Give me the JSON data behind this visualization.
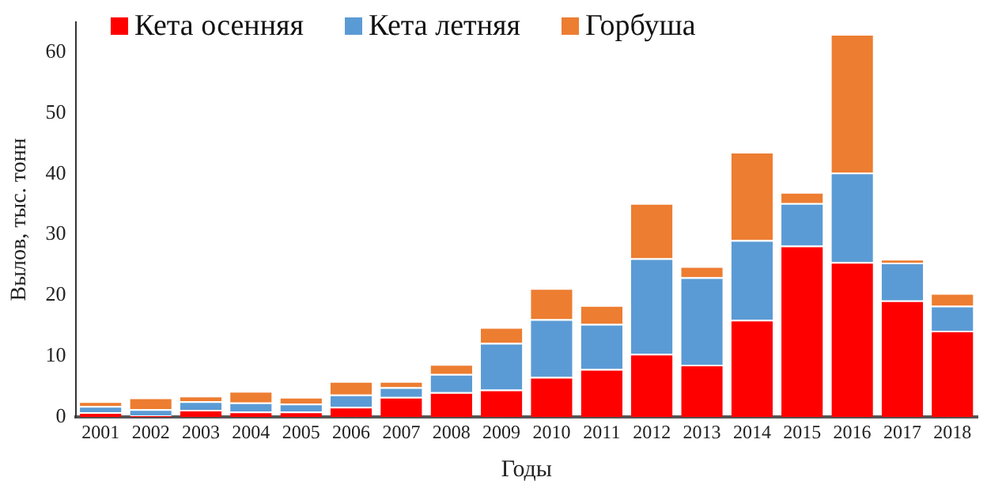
{
  "chart_data": {
    "type": "bar",
    "stacked": true,
    "xlabel": "Годы",
    "ylabel": "Вылов, тыс. тонн",
    "categories": [
      "2001",
      "2002",
      "2003",
      "2004",
      "2005",
      "2006",
      "2007",
      "2008",
      "2009",
      "2010",
      "2011",
      "2012",
      "2013",
      "2014",
      "2015",
      "2016",
      "2017",
      "2018"
    ],
    "series": [
      {
        "name": "Кета осенняя",
        "color": "#ff0000",
        "values": [
          0.8,
          0.3,
          1.2,
          0.9,
          0.9,
          1.7,
          3.3,
          4.1,
          4.5,
          6.6,
          7.9,
          10.4,
          8.6,
          16,
          28.2,
          25.5,
          19.2,
          14.2
        ]
      },
      {
        "name": "Кета летняя",
        "color": "#5b9bd5",
        "values": [
          1,
          1,
          1.4,
          1.5,
          1.3,
          2,
          1.6,
          3,
          7.7,
          9.5,
          7.4,
          15.7,
          14.4,
          13.1,
          7,
          14.7,
          6.2,
          4.1
        ]
      },
      {
        "name": "Горбуша",
        "color": "#ed7d31",
        "values": [
          0.8,
          1.9,
          0.9,
          1.9,
          1.1,
          2.2,
          1,
          1.6,
          2.6,
          5.1,
          3.1,
          9.1,
          1.8,
          14.5,
          1.8,
          22.8,
          0.6,
          2.1
        ]
      }
    ],
    "ylim": [
      0,
      65
    ],
    "yticks": [
      0,
      10,
      20,
      30,
      40,
      50,
      60
    ],
    "grid": false,
    "legend": "top"
  }
}
